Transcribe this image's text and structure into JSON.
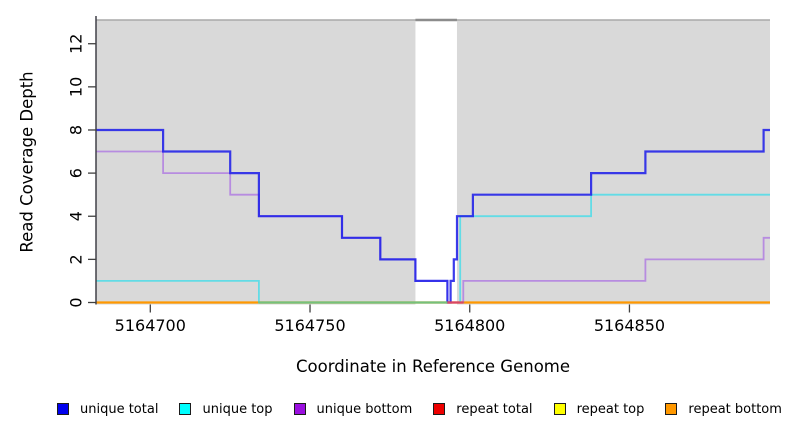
{
  "chart_data": {
    "type": "line",
    "subtype": "step-coverage",
    "xlabel": "Coordinate in Reference Genome",
    "ylabel": "Read Coverage Depth",
    "x_ticks": [
      5164700,
      5164750,
      5164800,
      5164850
    ],
    "y_ticks": [
      0,
      2,
      4,
      6,
      8,
      10,
      12
    ],
    "xlim": [
      5164683,
      5164894
    ],
    "ylim": [
      0,
      13.1
    ],
    "grid": false,
    "plot_background_color": "#d9d9d9",
    "repeat_region_mask": {
      "start": 5164783,
      "end": 5164796,
      "color": "#ffffff"
    },
    "clipped_top_segment": {
      "x1": 5164783,
      "x2": 5164796,
      "color": "#8c8c8c"
    },
    "top_border_color": "#a9a9a9",
    "axis_color": "#404048",
    "series": [
      {
        "name": "repeat top",
        "color": "#ffff00",
        "width": 2,
        "opacity": 1,
        "points": [
          [
            5164683,
            0
          ],
          [
            5164894,
            0
          ]
        ]
      },
      {
        "name": "repeat total",
        "color": "#ee0000",
        "width": 2,
        "opacity": 1,
        "points": [
          [
            5164683,
            0
          ],
          [
            5164894,
            0
          ]
        ]
      },
      {
        "name": "repeat bottom",
        "color": "#ff9800",
        "width": 2.2,
        "opacity": 1,
        "points": [
          [
            5164683,
            0
          ],
          [
            5164894,
            0
          ]
        ]
      },
      {
        "name": "unique top",
        "color": "#00dff0",
        "width": 1.8,
        "opacity": 0.55,
        "points": [
          [
            5164683,
            1
          ],
          [
            5164734,
            0
          ],
          [
            5164797,
            4
          ],
          [
            5164838,
            5
          ],
          [
            5164894,
            5
          ]
        ]
      },
      {
        "name": "unique bottom",
        "color": "#8f2fe8",
        "width": 1.8,
        "opacity": 0.45,
        "points": [
          [
            5164683,
            7
          ],
          [
            5164704,
            6
          ],
          [
            5164725,
            5
          ],
          [
            5164734,
            4
          ],
          [
            5164760,
            3
          ],
          [
            5164772,
            2
          ],
          [
            5164783,
            1
          ],
          [
            5164793,
            0
          ],
          [
            5164798,
            1
          ],
          [
            5164855,
            2
          ],
          [
            5164892,
            3
          ],
          [
            5164894,
            3
          ]
        ]
      },
      {
        "name": "unique total",
        "color": "#2020e8",
        "width": 2.2,
        "opacity": 0.88,
        "points": [
          [
            5164683,
            8
          ],
          [
            5164704,
            7
          ],
          [
            5164725,
            6
          ],
          [
            5164734,
            4
          ],
          [
            5164760,
            3
          ],
          [
            5164772,
            2
          ],
          [
            5164783,
            1
          ],
          [
            5164793,
            0
          ],
          [
            5164794,
            1
          ],
          [
            5164795,
            2
          ],
          [
            5164796,
            4
          ],
          [
            5164801,
            5
          ],
          [
            5164838,
            6
          ],
          [
            5164855,
            7
          ],
          [
            5164892,
            8
          ],
          [
            5164894,
            8
          ]
        ]
      }
    ],
    "overlay_segments": [
      {
        "x1": 5164734,
        "x2": 5164793,
        "y": 0,
        "color": "#74c17c",
        "width": 2.2
      },
      {
        "x1": 5164793,
        "x2": 5164798,
        "y": 0,
        "color": "#d94667",
        "width": 2.2
      }
    ]
  },
  "legend": {
    "items": [
      {
        "label": "unique total",
        "color": "#0000ee"
      },
      {
        "label": "unique top",
        "color": "#00ffff"
      },
      {
        "label": "unique bottom",
        "color": "#9b0fe0"
      },
      {
        "label": "repeat total",
        "color": "#ee0000"
      },
      {
        "label": "repeat top",
        "color": "#ffff00"
      },
      {
        "label": "repeat bottom",
        "color": "#ff9800"
      }
    ]
  }
}
